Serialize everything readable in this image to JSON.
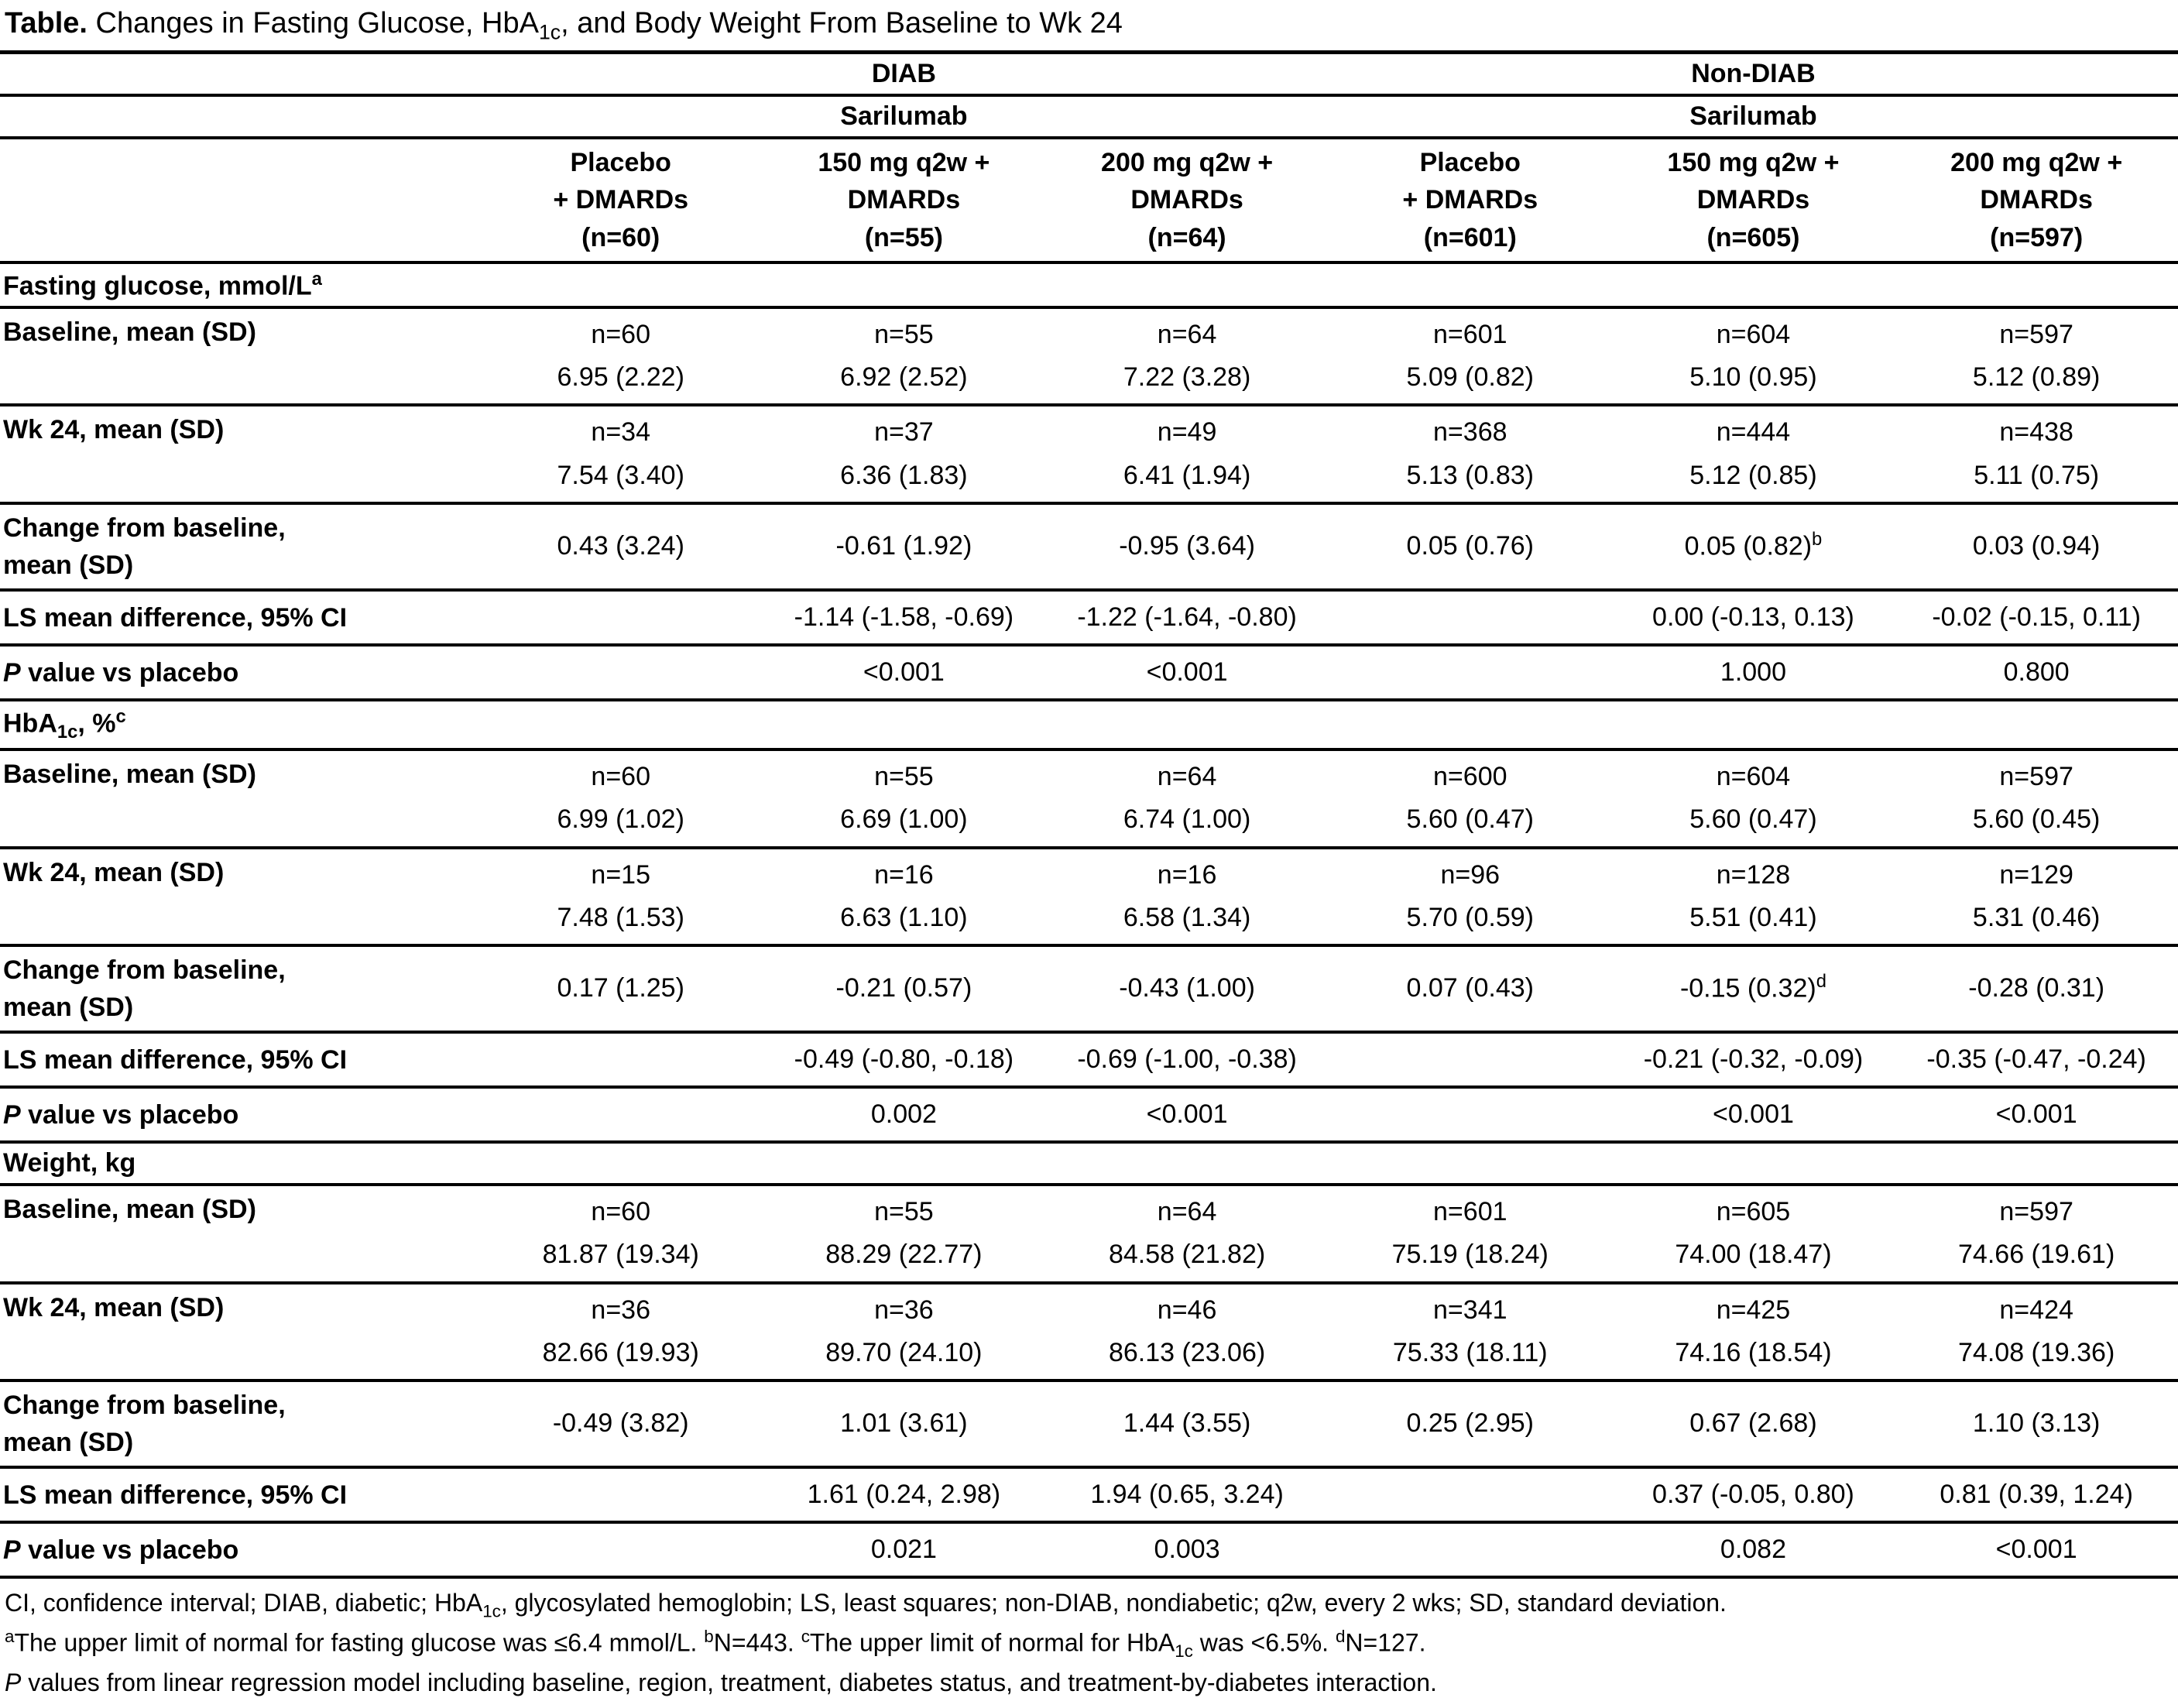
{
  "title": [
    {
      "b": "Table."
    },
    {
      "t": " Changes in Fasting Glucose, HbA"
    },
    {
      "sub": "1c"
    },
    {
      "t": ", and Body Weight From Baseline to Wk 24"
    }
  ],
  "table": {
    "group_headers": [
      {
        "label": "DIAB",
        "span": 3
      },
      {
        "label": "Non-DIAB",
        "span": 3
      }
    ],
    "subgroup_headers": [
      {
        "label": "Sarilumab",
        "span": 3
      },
      {
        "label": "Sarilumab",
        "span": 3
      }
    ],
    "column_headers": [
      [
        "Placebo",
        "+ DMARDs",
        "(n=60)"
      ],
      [
        "150 mg q2w +",
        "DMARDs",
        "(n=55)"
      ],
      [
        "200 mg q2w +",
        "DMARDs",
        "(n=64)"
      ],
      [
        "Placebo",
        "+ DMARDs",
        "(n=601)"
      ],
      [
        "150 mg q2w +",
        "DMARDs",
        "(n=605)"
      ],
      [
        "200 mg q2w +",
        "DMARDs",
        "(n=597)"
      ]
    ],
    "sections": [
      {
        "name": "fasting-glucose",
        "label": [
          {
            "t": "Fasting glucose, mmol/L"
          },
          {
            "sup": "a"
          }
        ],
        "rows": [
          {
            "name": "baseline-mean-sd",
            "valign": "top",
            "label": [
              "Baseline, mean (SD)"
            ],
            "cells": [
              [
                "n=60",
                "6.95 (2.22)"
              ],
              [
                "n=55",
                "6.92 (2.52)"
              ],
              [
                "n=64",
                "7.22 (3.28)"
              ],
              [
                "n=601",
                "5.09 (0.82)"
              ],
              [
                "n=604",
                "5.10 (0.95)"
              ],
              [
                "n=597",
                "5.12 (0.89)"
              ]
            ]
          },
          {
            "name": "wk24-mean-sd",
            "valign": "top",
            "label": [
              "Wk 24, mean (SD)"
            ],
            "cells": [
              [
                "n=34",
                "7.54 (3.40)"
              ],
              [
                "n=37",
                "6.36 (1.83)"
              ],
              [
                "n=49",
                "6.41 (1.94)"
              ],
              [
                "n=368",
                "5.13 (0.83)"
              ],
              [
                "n=444",
                "5.12 (0.85)"
              ],
              [
                "n=438",
                "5.11 (0.75)"
              ]
            ]
          },
          {
            "name": "change-from-baseline",
            "valign": "middle",
            "label": [
              "Change from baseline,",
              "mean (SD)"
            ],
            "cells": [
              [
                "0.43 (3.24)"
              ],
              [
                "-0.61 (1.92)"
              ],
              [
                "-0.95 (3.64)"
              ],
              [
                "0.05 (0.76)"
              ],
              [
                [
                  {
                    "t": "0.05 (0.82)"
                  },
                  {
                    "sup": "b"
                  }
                ]
              ],
              [
                "0.03 (0.94)"
              ]
            ]
          },
          {
            "name": "ls-mean-difference",
            "valign": "middle",
            "label": [
              "LS mean difference, 95% CI"
            ],
            "cells": [
              [],
              [
                "-1.14 (-1.58, -0.69)"
              ],
              [
                "-1.22 (-1.64, -0.80)"
              ],
              [],
              [
                "0.00 (-0.13, 0.13)"
              ],
              [
                "-0.02 (-0.15, 0.11)"
              ]
            ]
          },
          {
            "name": "p-value-vs-placebo",
            "valign": "middle",
            "label": [
              [
                {
                  "i": "P"
                },
                {
                  "t": " value vs placebo"
                }
              ]
            ],
            "cells": [
              [],
              [
                "<0.001"
              ],
              [
                "<0.001"
              ],
              [],
              [
                "1.000"
              ],
              [
                "0.800"
              ]
            ]
          }
        ]
      },
      {
        "name": "hba1c",
        "label": [
          {
            "t": "HbA"
          },
          {
            "sub": "1c"
          },
          {
            "t": ", %"
          },
          {
            "sup": "c"
          }
        ],
        "rows": [
          {
            "name": "baseline-mean-sd",
            "valign": "top",
            "label": [
              "Baseline, mean (SD)"
            ],
            "cells": [
              [
                "n=60",
                "6.99 (1.02)"
              ],
              [
                "n=55",
                "6.69 (1.00)"
              ],
              [
                "n=64",
                "6.74 (1.00)"
              ],
              [
                "n=600",
                "5.60 (0.47)"
              ],
              [
                "n=604",
                "5.60 (0.47)"
              ],
              [
                "n=597",
                "5.60 (0.45)"
              ]
            ]
          },
          {
            "name": "wk24-mean-sd",
            "valign": "top",
            "label": [
              "Wk 24, mean (SD)"
            ],
            "cells": [
              [
                "n=15",
                "7.48 (1.53)"
              ],
              [
                "n=16",
                "6.63 (1.10)"
              ],
              [
                "n=16",
                "6.58 (1.34)"
              ],
              [
                "n=96",
                "5.70 (0.59)"
              ],
              [
                "n=128",
                "5.51 (0.41)"
              ],
              [
                "n=129",
                "5.31 (0.46)"
              ]
            ]
          },
          {
            "name": "change-from-baseline",
            "valign": "middle",
            "label": [
              "Change from baseline,",
              "mean (SD)"
            ],
            "cells": [
              [
                "0.17 (1.25)"
              ],
              [
                "-0.21 (0.57)"
              ],
              [
                "-0.43 (1.00)"
              ],
              [
                "0.07 (0.43)"
              ],
              [
                [
                  {
                    "t": "-0.15 (0.32)"
                  },
                  {
                    "sup": "d"
                  }
                ]
              ],
              [
                "-0.28 (0.31)"
              ]
            ]
          },
          {
            "name": "ls-mean-difference",
            "valign": "middle",
            "label": [
              "LS mean difference, 95% CI"
            ],
            "cells": [
              [],
              [
                "-0.49 (-0.80, -0.18)"
              ],
              [
                "-0.69 (-1.00, -0.38)"
              ],
              [],
              [
                "-0.21 (-0.32, -0.09)"
              ],
              [
                "-0.35 (-0.47, -0.24)"
              ]
            ]
          },
          {
            "name": "p-value-vs-placebo",
            "valign": "middle",
            "label": [
              [
                {
                  "i": "P"
                },
                {
                  "t": " value vs placebo"
                }
              ]
            ],
            "cells": [
              [],
              [
                "0.002"
              ],
              [
                "<0.001"
              ],
              [],
              [
                "<0.001"
              ],
              [
                "<0.001"
              ]
            ]
          }
        ]
      },
      {
        "name": "weight",
        "label": [
          {
            "t": "Weight, kg"
          }
        ],
        "rows": [
          {
            "name": "baseline-mean-sd",
            "valign": "top",
            "label": [
              "Baseline, mean (SD)"
            ],
            "cells": [
              [
                "n=60",
                "81.87 (19.34)"
              ],
              [
                "n=55",
                "88.29 (22.77)"
              ],
              [
                "n=64",
                "84.58 (21.82)"
              ],
              [
                "n=601",
                "75.19 (18.24)"
              ],
              [
                "n=605",
                "74.00 (18.47)"
              ],
              [
                "n=597",
                "74.66 (19.61)"
              ]
            ]
          },
          {
            "name": "wk24-mean-sd",
            "valign": "top",
            "label": [
              "Wk 24, mean (SD)"
            ],
            "cells": [
              [
                "n=36",
                "82.66 (19.93)"
              ],
              [
                "n=36",
                "89.70 (24.10)"
              ],
              [
                "n=46",
                "86.13 (23.06)"
              ],
              [
                "n=341",
                "75.33 (18.11)"
              ],
              [
                "n=425",
                "74.16 (18.54)"
              ],
              [
                "n=424",
                "74.08 (19.36)"
              ]
            ]
          },
          {
            "name": "change-from-baseline",
            "valign": "middle",
            "label": [
              "Change from baseline,",
              "mean (SD)"
            ],
            "cells": [
              [
                "-0.49 (3.82)"
              ],
              [
                "1.01 (3.61)"
              ],
              [
                "1.44 (3.55)"
              ],
              [
                "0.25 (2.95)"
              ],
              [
                "0.67 (2.68)"
              ],
              [
                "1.10 (3.13)"
              ]
            ]
          },
          {
            "name": "ls-mean-difference",
            "valign": "middle",
            "label": [
              "LS mean difference, 95% CI"
            ],
            "cells": [
              [],
              [
                "1.61 (0.24, 2.98)"
              ],
              [
                "1.94 (0.65, 3.24)"
              ],
              [],
              [
                "0.37 (-0.05, 0.80)"
              ],
              [
                "0.81 (0.39, 1.24)"
              ]
            ]
          },
          {
            "name": "p-value-vs-placebo",
            "valign": "middle",
            "label": [
              [
                {
                  "i": "P"
                },
                {
                  "t": " value vs placebo"
                }
              ]
            ],
            "cells": [
              [],
              [
                "0.021"
              ],
              [
                "0.003"
              ],
              [],
              [
                "0.082"
              ],
              [
                "<0.001"
              ]
            ]
          }
        ]
      }
    ]
  },
  "footnotes": [
    [
      {
        "t": "CI, confidence interval; DIAB, diabetic; HbA"
      },
      {
        "sub": "1c"
      },
      {
        "t": ", glycosylated hemoglobin; LS, least squares; non-DIAB, nondiabetic; q2w, every 2 wks; SD, standard deviation."
      }
    ],
    [
      {
        "sup": "a"
      },
      {
        "t": "The upper limit of normal for fasting glucose was ≤6.4 mmol/L. "
      },
      {
        "sup": "b"
      },
      {
        "t": "N=443. "
      },
      {
        "sup": "c"
      },
      {
        "t": "The upper limit of normal for HbA"
      },
      {
        "sub": "1c"
      },
      {
        "t": " was <6.5%. "
      },
      {
        "sup": "d"
      },
      {
        "t": "N=127."
      }
    ],
    [
      {
        "i": "P"
      },
      {
        "t": " values from linear regression model including baseline, region, treatment, diabetes status, and treatment-by-diabetes interaction."
      }
    ]
  ]
}
